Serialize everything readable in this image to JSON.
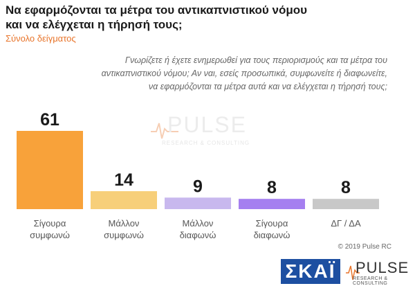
{
  "title": "Να εφαρμόζονται τα μέτρα του αντικαπνιστικού νόμου και να ελέγχεται η τήρησή τους;",
  "subtitle": "Σύνολο δείγματος",
  "question": "Γνωρίζετε ή έχετε ενημερωθεί για τους περιορισμούς και τα μέτρα του αντικαπνιστικού νόμου; Αν ναι, εσείς προσωπικά, συμφωνείτε ή διαφωνείτε, να εφαρμόζονται τα μέτρα αυτά και να ελέγχεται η τήρησή τους;",
  "watermark": {
    "name": "PULSE",
    "tagline": "RESEARCH & CONSULTING"
  },
  "copyright": "© 2019 Pulse RC",
  "logos": {
    "skai": "ΣΚΑΪ",
    "pulse": "PULSE",
    "pulse_tagline": "RESEARCH & CONSULTING"
  },
  "chart_data": {
    "type": "bar",
    "categories": [
      [
        "Σίγουρα",
        "συμφωνώ"
      ],
      [
        "Μάλλον",
        "συμφωνώ"
      ],
      [
        "Μάλλον",
        "διαφωνώ"
      ],
      [
        "Σίγουρα",
        "διαφωνώ"
      ],
      [
        "ΔΓ / ΔΑ"
      ]
    ],
    "values": [
      61,
      14,
      9,
      8,
      8
    ],
    "colors": [
      "#f8a23a",
      "#f7cf7a",
      "#c8b8ee",
      "#a57ff0",
      "#c8c8c8"
    ],
    "ylim": [
      0,
      61
    ],
    "grid": false,
    "legend": "none",
    "data_labels": true
  }
}
